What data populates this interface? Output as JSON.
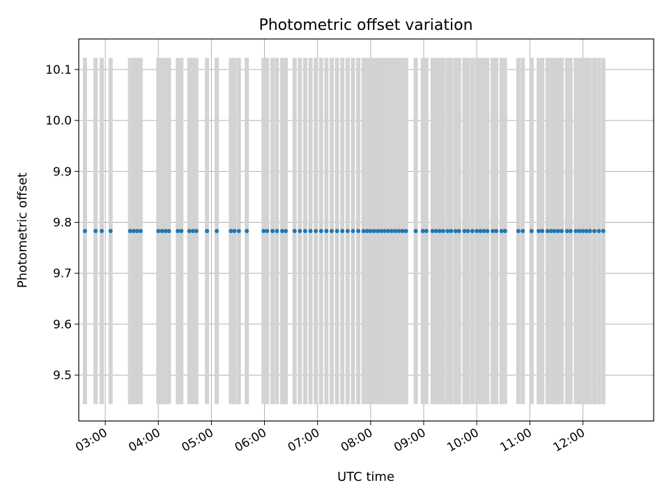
{
  "chart_data": {
    "type": "scatter",
    "title": "Photometric offset variation",
    "xlabel": "UTC time",
    "ylabel": "Photometric offset",
    "x_units": "UTC time (HH:MM)",
    "xlim": [
      "02:30",
      "13:20"
    ],
    "ylim": [
      9.41,
      10.16
    ],
    "grid": true,
    "x_ticks": [
      "03:00",
      "04:00",
      "05:00",
      "06:00",
      "07:00",
      "08:00",
      "09:00",
      "10:00",
      "11:00",
      "12:00"
    ],
    "y_ticks": [
      9.5,
      9.6,
      9.7,
      9.8,
      9.9,
      10.0,
      10.1
    ],
    "y_tick_labels": [
      "9.5",
      "9.6",
      "9.7",
      "9.8",
      "9.9",
      "10.0",
      "10.1"
    ],
    "colors": {
      "points": "#1f77b4",
      "errorbars": "#d3d3d3"
    },
    "series": [
      {
        "y_constant": 9.783,
        "error": 0.34,
        "x": [
          "02:37",
          "02:49",
          "02:56",
          "03:06",
          "03:28",
          "03:32",
          "03:36",
          "03:40",
          "04:00",
          "04:04",
          "04:08",
          "04:12",
          "04:22",
          "04:26",
          "04:35",
          "04:39",
          "04:43",
          "04:55",
          "05:06",
          "05:22",
          "05:26",
          "05:31",
          "05:40",
          "05:59",
          "06:03",
          "06:09",
          "06:14",
          "06:20",
          "06:24",
          "06:34",
          "06:40",
          "06:46",
          "06:52",
          "06:58",
          "07:04",
          "07:10",
          "07:16",
          "07:22",
          "07:28",
          "07:34",
          "07:40",
          "07:46",
          "07:52",
          "07:56",
          "08:00",
          "08:04",
          "08:08",
          "08:12",
          "08:16",
          "08:20",
          "08:24",
          "08:28",
          "08:32",
          "08:36",
          "08:40",
          "08:51",
          "08:59",
          "09:03",
          "09:10",
          "09:14",
          "09:18",
          "09:22",
          "09:27",
          "09:31",
          "09:36",
          "09:40",
          "09:46",
          "09:50",
          "09:55",
          "10:00",
          "10:04",
          "10:08",
          "10:12",
          "10:18",
          "10:22",
          "10:28",
          "10:32",
          "10:47",
          "10:52",
          "11:02",
          "11:10",
          "11:14",
          "11:20",
          "11:24",
          "11:28",
          "11:32",
          "11:36",
          "11:42",
          "11:46",
          "11:52",
          "11:56",
          "12:00",
          "12:04",
          "12:08",
          "12:13",
          "12:18",
          "12:23"
        ]
      }
    ]
  }
}
